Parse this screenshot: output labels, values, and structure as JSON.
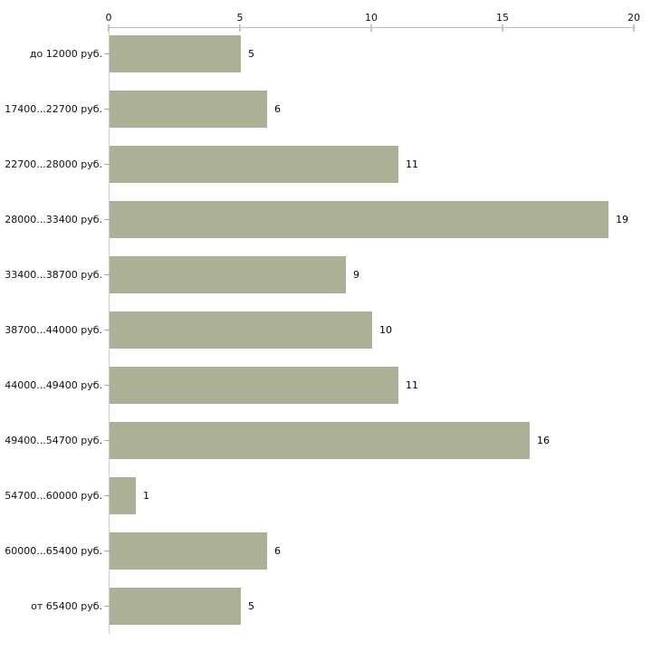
{
  "chart_data": {
    "type": "bar",
    "orientation": "horizontal",
    "title": "",
    "xlabel": "",
    "ylabel": "",
    "grid": false,
    "legend": false,
    "axis_position": "top",
    "xlim": [
      0,
      20
    ],
    "x_ticks": [
      0,
      5,
      10,
      15,
      20
    ],
    "categories": [
      "до 12000 руб.",
      "17400...22700 руб.",
      "22700...28000 руб.",
      "28000...33400 руб.",
      "33400...38700 руб.",
      "38700...44000 руб.",
      "44000...49400 руб.",
      "49400...54700 руб.",
      "54700...60000 руб.",
      "60000...65400 руб.",
      "от 65400 руб."
    ],
    "values": [
      5,
      6,
      11,
      19,
      9,
      10,
      11,
      16,
      1,
      6,
      5
    ],
    "colors": {
      "bar": "#abb196",
      "axis_line": "#bdbdbd",
      "tick_mark": "#c6caa8",
      "category_tick": "#a8a69c",
      "text": "#111111",
      "background": "#ffffff"
    }
  }
}
